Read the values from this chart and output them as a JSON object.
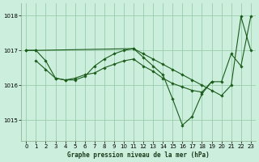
{
  "background_color": "#cceedd",
  "grid_color": "#99ccaa",
  "line_color": "#1a5c1a",
  "marker_color": "#1a5c1a",
  "title": "Graphe pression niveau de la mer (hPa)",
  "xlim": [
    -0.5,
    23.5
  ],
  "ylim": [
    1014.4,
    1018.35
  ],
  "yticks": [
    1015,
    1016,
    1017,
    1018
  ],
  "xticks": [
    0,
    1,
    2,
    3,
    4,
    5,
    6,
    7,
    8,
    9,
    10,
    11,
    12,
    13,
    14,
    15,
    16,
    17,
    18,
    19,
    20,
    21,
    22,
    23
  ],
  "series": [
    {
      "x": [
        0,
        1,
        11,
        12,
        13,
        14,
        15,
        16,
        17,
        18,
        19,
        20,
        21,
        22,
        23
      ],
      "y": [
        1017.0,
        1017.0,
        1017.05,
        1016.9,
        1016.75,
        1016.6,
        1016.45,
        1016.3,
        1016.15,
        1016.0,
        1015.85,
        1015.7,
        1016.0,
        1017.97,
        1017.0
      ]
    },
    {
      "x": [
        0,
        1,
        2,
        3,
        4,
        5,
        6,
        7,
        8,
        9,
        10,
        11,
        12,
        13,
        14,
        15,
        16,
        17,
        18,
        19,
        20,
        21,
        22,
        23
      ],
      "y": [
        1017.0,
        1017.0,
        1016.7,
        1016.2,
        1016.15,
        1016.15,
        1016.25,
        1016.55,
        1016.75,
        1016.9,
        1017.0,
        1017.05,
        1016.8,
        1016.55,
        1016.3,
        1015.6,
        1014.85,
        1015.1,
        1015.75,
        1016.1,
        1016.1,
        1016.9,
        1016.55,
        1017.97
      ]
    },
    {
      "x": [
        1,
        2,
        3,
        4,
        5,
        6,
        7,
        8,
        9,
        10,
        11,
        12,
        13,
        14,
        15,
        16,
        17,
        18,
        19
      ],
      "y": [
        1016.7,
        1016.45,
        1016.2,
        1016.15,
        1016.2,
        1016.3,
        1016.35,
        1016.5,
        1016.6,
        1016.7,
        1016.75,
        1016.55,
        1016.4,
        1016.2,
        1016.05,
        1015.95,
        1015.85,
        1015.8,
        1016.1
      ]
    }
  ]
}
